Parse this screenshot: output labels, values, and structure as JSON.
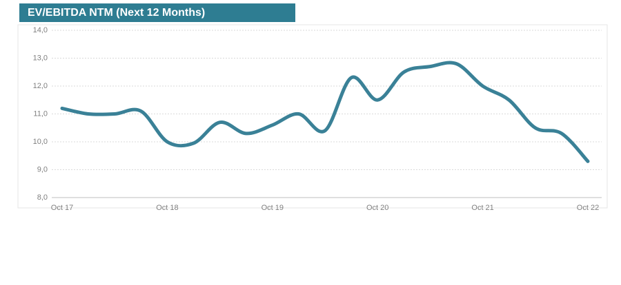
{
  "chart_data": {
    "type": "line",
    "title": "EV/EBITDA NTM (Next 12 Months)",
    "categories": [
      "Oct 17",
      null,
      null,
      null,
      "Oct 18",
      null,
      null,
      null,
      "Oct 19",
      null,
      null,
      null,
      "Oct 20",
      null,
      null,
      null,
      "Oct 21",
      null,
      null,
      null,
      "Oct 22"
    ],
    "series": [
      {
        "name": "EV/EBITDA NTM",
        "color": "#3a8197",
        "values": [
          11.2,
          11.0,
          11.0,
          11.1,
          10.0,
          9.95,
          10.7,
          10.3,
          10.6,
          11.0,
          10.4,
          12.3,
          11.5,
          12.5,
          12.7,
          12.8,
          12.0,
          11.5,
          10.5,
          10.3,
          9.3
        ]
      }
    ],
    "ylim": [
      8,
      14
    ],
    "yticks": [
      {
        "value": 8,
        "label": "8,0"
      },
      {
        "value": 9,
        "label": "9,0"
      },
      {
        "value": 10,
        "label": "10,0"
      },
      {
        "value": 11,
        "label": "11,0"
      },
      {
        "value": 12,
        "label": "12,0"
      },
      {
        "value": 13,
        "label": "13,0"
      },
      {
        "value": 14,
        "label": "14,0"
      }
    ],
    "grid": true
  }
}
